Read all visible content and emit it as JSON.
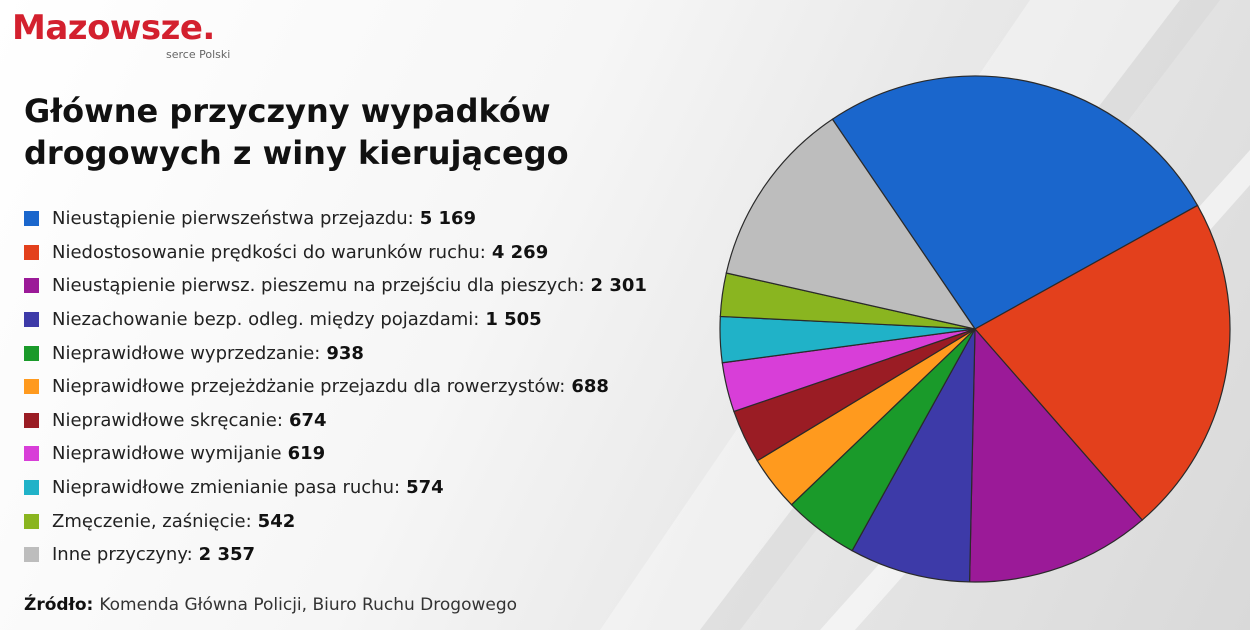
{
  "logo": {
    "name": "Mazowsze.",
    "tagline": "serce Polski",
    "color": "#d3202e"
  },
  "title": "Główne przyczyny wypadków drogowych z winy kierującego",
  "source": {
    "label": "Źródło:",
    "text": "Komenda Główna Policji, Biuro Ruchu Drogowego"
  },
  "chart_data": {
    "type": "pie",
    "title": "Główne przyczyny wypadków drogowych z winy kierującego",
    "start_angle_deg": 236,
    "direction": "clockwise",
    "legend_position": "left",
    "slices": [
      {
        "label": "Nieustąpienie pierwszeństwa przejazdu:",
        "value": 5169,
        "value_label": "5 169",
        "color": "#1a66cc"
      },
      {
        "label": "Niedostosowanie prędkości do warunków ruchu:",
        "value": 4269,
        "value_label": "4 269",
        "color": "#e3401c"
      },
      {
        "label": "Nieustąpienie pierwsz. pieszemu na przejściu dla pieszych:",
        "value": 2301,
        "value_label": "2 301",
        "color": "#9b1a98"
      },
      {
        "label": "Niezachowanie bezp. odleg. między pojazdami:",
        "value": 1505,
        "value_label": "1 505",
        "color": "#3d3aa8"
      },
      {
        "label": "Nieprawidłowe wyprzedzanie:",
        "value": 938,
        "value_label": "938",
        "color": "#1a9a2a"
      },
      {
        "label": "Nieprawidłowe przejeżdżanie przejazdu dla rowerzystów:",
        "value": 688,
        "value_label": "688",
        "color": "#ff9a1e"
      },
      {
        "label": "Nieprawidłowe skręcanie:",
        "value": 674,
        "value_label": "674",
        "color": "#9a1c24"
      },
      {
        "label": "Nieprawidłowe wymijanie",
        "value": 619,
        "value_label": "619",
        "color": "#d83ed8"
      },
      {
        "label": "Nieprawidłowe zmienianie pasa ruchu:",
        "value": 574,
        "value_label": "574",
        "color": "#20b2c8"
      },
      {
        "label": "Zmęczenie, zaśnięcie:",
        "value": 542,
        "value_label": "542",
        "color": "#8ab520"
      },
      {
        "label": "Inne przyczyny:",
        "value": 2357,
        "value_label": "2 357",
        "color": "#bdbdbd"
      }
    ]
  }
}
